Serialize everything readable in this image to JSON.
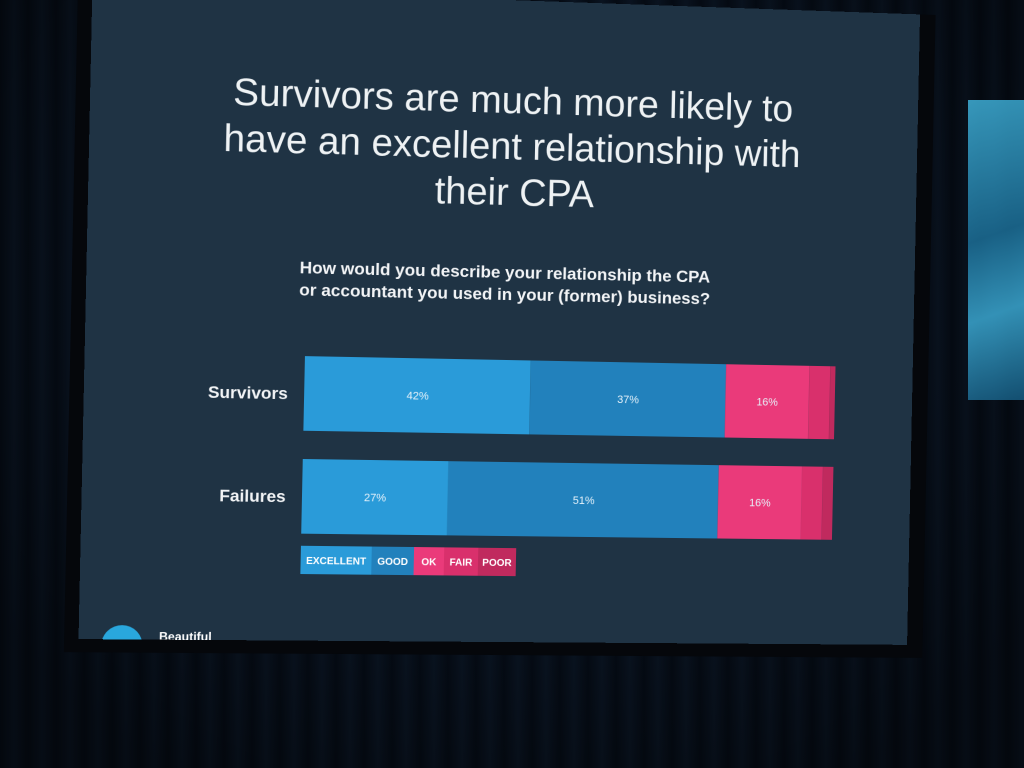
{
  "slide": {
    "title": "Survivors are much more likely to have an excellent relationship with their CPA",
    "question": "How would you describe your relationship the CPA or accountant you used in your (former) business?",
    "logo_text": "Beautiful"
  },
  "chart_data": {
    "type": "bar",
    "orientation": "horizontal",
    "stacked": true,
    "categories": [
      "Survivors",
      "Failures"
    ],
    "series": [
      {
        "name": "EXCELLENT",
        "values": [
          42,
          27
        ],
        "labels": [
          "42%",
          "27%"
        ],
        "color": "#2a9bd9"
      },
      {
        "name": "GOOD",
        "values": [
          37,
          51
        ],
        "labels": [
          "37%",
          "51%"
        ],
        "color": "#2281bc"
      },
      {
        "name": "OK",
        "values": [
          16,
          16
        ],
        "labels": [
          "16%",
          "16%"
        ],
        "color": "#ea3a7a"
      },
      {
        "name": "FAIR",
        "values": [
          4,
          4
        ],
        "labels": [
          "",
          ""
        ],
        "color": "#d9306c"
      },
      {
        "name": "POOR",
        "values": [
          1,
          2
        ],
        "labels": [
          "",
          ""
        ],
        "color": "#c02a5e"
      }
    ],
    "legend_position": "bottom-left",
    "grid": false
  }
}
